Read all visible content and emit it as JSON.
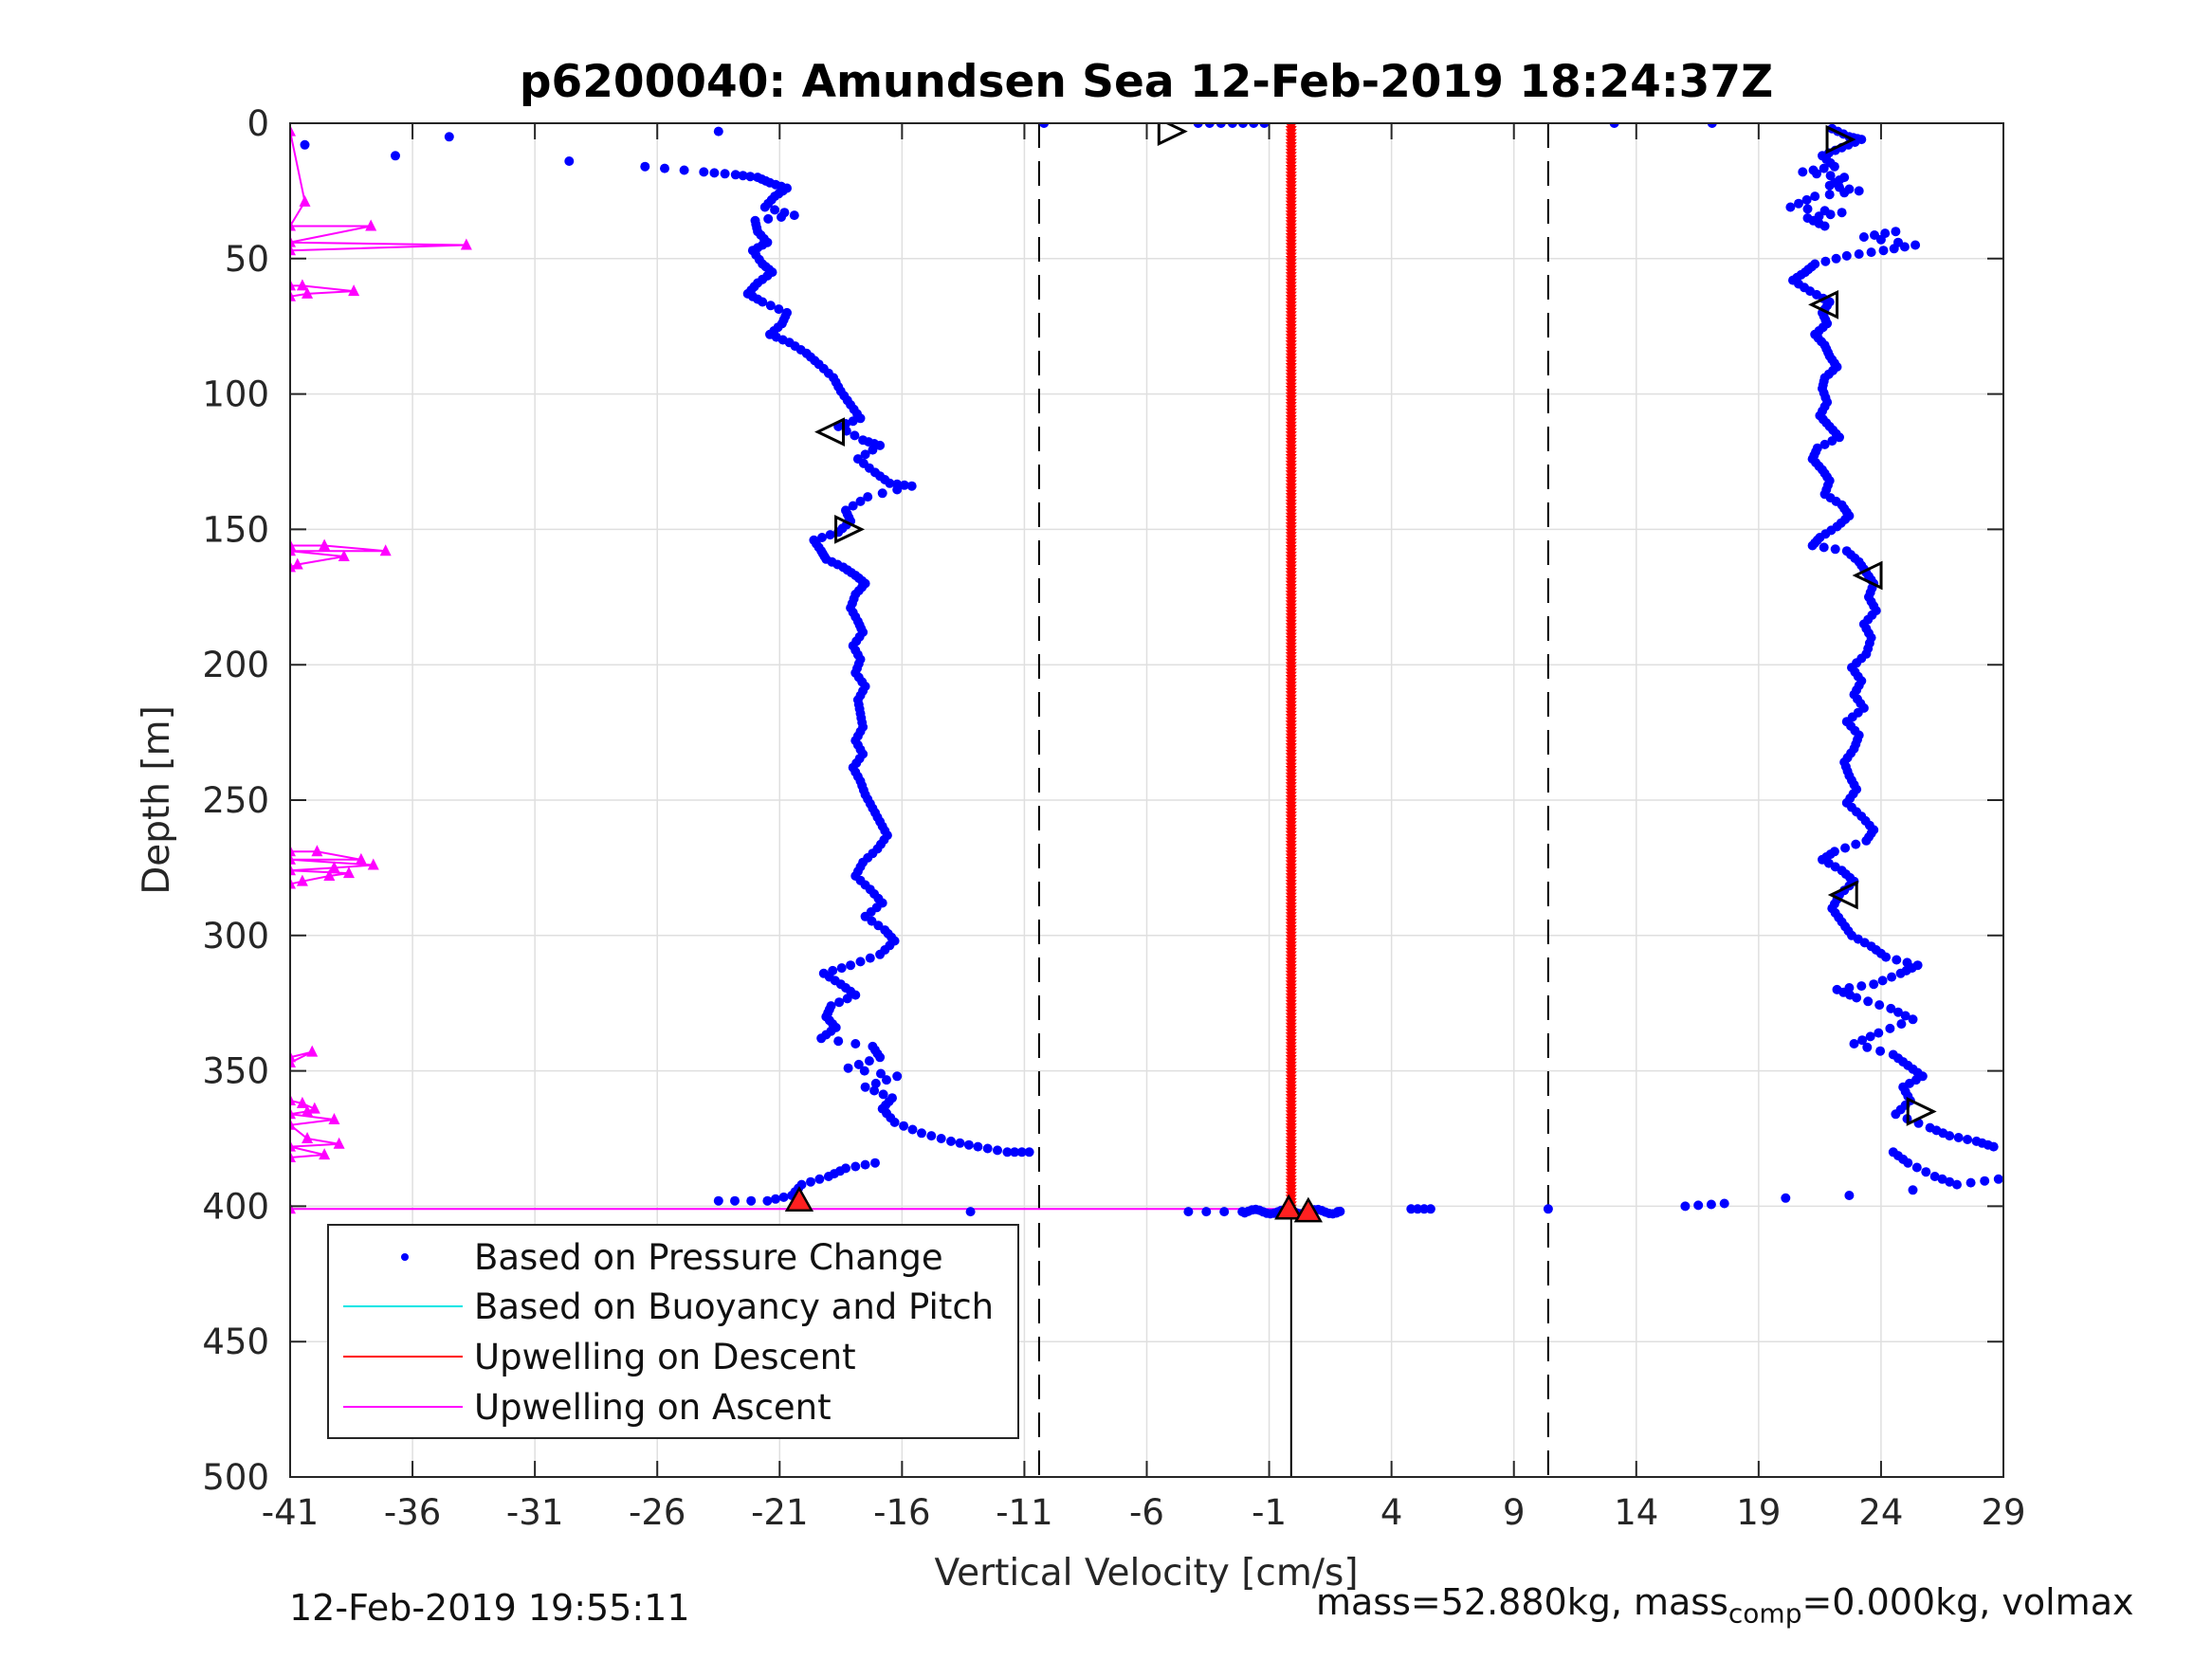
{
  "chart_data": {
    "type": "scatter",
    "title": "p6200040: Amundsen Sea 12-Feb-2019 18:24:37Z",
    "xlabel": "Vertical Velocity [cm/s]",
    "ylabel": "Depth [m]",
    "xlim": [
      -41,
      29
    ],
    "ylim": [
      0,
      500
    ],
    "y_reversed": true,
    "grid": true,
    "xticks": [
      "-41",
      "-36",
      "-31",
      "-26",
      "-21",
      "-16",
      "-11",
      "-6",
      "-1",
      "4",
      "9",
      "14",
      "19",
      "24",
      "29"
    ],
    "yticks": [
      "0",
      "50",
      "100",
      "150",
      "200",
      "250",
      "300",
      "350",
      "400",
      "450",
      "500"
    ],
    "legend_position": "bottom-left",
    "legend": [
      "Based on Pressure Change",
      "Based on Buoyancy and Pitch",
      "Upwelling on Descent",
      "Upwelling on Ascent"
    ],
    "colors": {
      "pressure": "#0000ff",
      "buoyancy": "#00e5e5",
      "descent": "#ff0000",
      "ascent": "#ff00ff",
      "axis": "#262626",
      "grid": "#dfdfdf"
    },
    "reference_lines_x": [
      -10.4,
      10.4
    ],
    "descent_profile": [
      [
        -23.5,
        3
      ],
      [
        -34.5,
        5
      ],
      [
        -40.4,
        8
      ],
      [
        -36.7,
        12
      ],
      [
        -29.6,
        14
      ],
      [
        -26.5,
        16
      ],
      [
        -24.1,
        18
      ],
      [
        -22.8,
        19
      ],
      [
        -21.9,
        20
      ],
      [
        -21.4,
        22
      ],
      [
        -20.7,
        24
      ],
      [
        -21.2,
        27
      ],
      [
        -21.6,
        31
      ],
      [
        -20.4,
        34
      ],
      [
        -22.0,
        36
      ],
      [
        -21.9,
        40
      ],
      [
        -21.5,
        44
      ],
      [
        -22.1,
        47
      ],
      [
        -21.7,
        52
      ],
      [
        -21.3,
        55
      ],
      [
        -21.9,
        59
      ],
      [
        -22.3,
        63
      ],
      [
        -21.7,
        66
      ],
      [
        -20.7,
        70
      ],
      [
        -20.9,
        74
      ],
      [
        -21.4,
        78
      ],
      [
        -20.6,
        81
      ],
      [
        -19.9,
        85
      ],
      [
        -19.4,
        89
      ],
      [
        -18.8,
        94
      ],
      [
        -18.5,
        99
      ],
      [
        -18.1,
        104
      ],
      [
        -17.7,
        109
      ],
      [
        -18.6,
        112
      ],
      [
        -17.6,
        117
      ],
      [
        -16.9,
        119
      ],
      [
        -17.8,
        124
      ],
      [
        -17.1,
        129
      ],
      [
        -16.5,
        133
      ],
      [
        -15.6,
        134
      ],
      [
        -17.4,
        138
      ],
      [
        -18.3,
        143
      ],
      [
        -18.1,
        147
      ],
      [
        -18.6,
        151
      ],
      [
        -19.6,
        154
      ],
      [
        -19.3,
        158
      ],
      [
        -19.1,
        161
      ],
      [
        -18.4,
        164
      ],
      [
        -17.9,
        167
      ],
      [
        -17.5,
        170
      ],
      [
        -17.9,
        174
      ],
      [
        -18.1,
        179
      ],
      [
        -17.8,
        184
      ],
      [
        -17.6,
        188
      ],
      [
        -18.0,
        193
      ],
      [
        -17.7,
        198
      ],
      [
        -17.9,
        203
      ],
      [
        -17.5,
        208
      ],
      [
        -17.8,
        213
      ],
      [
        -17.7,
        218
      ],
      [
        -17.6,
        223
      ],
      [
        -17.9,
        228
      ],
      [
        -17.6,
        233
      ],
      [
        -18.0,
        238
      ],
      [
        -17.7,
        243
      ],
      [
        -17.5,
        248
      ],
      [
        -17.2,
        253
      ],
      [
        -16.9,
        258
      ],
      [
        -16.6,
        263
      ],
      [
        -17.0,
        268
      ],
      [
        -17.6,
        273
      ],
      [
        -17.9,
        278
      ],
      [
        -17.3,
        283
      ],
      [
        -16.8,
        288
      ],
      [
        -17.5,
        293
      ],
      [
        -16.7,
        298
      ],
      [
        -16.3,
        302
      ],
      [
        -16.9,
        307
      ],
      [
        -18.1,
        311
      ],
      [
        -19.2,
        314
      ],
      [
        -18.5,
        318
      ],
      [
        -17.9,
        322
      ],
      [
        -18.9,
        326
      ],
      [
        -19.1,
        330
      ],
      [
        -18.7,
        334
      ],
      [
        -19.3,
        338
      ],
      [
        -17.2,
        341
      ],
      [
        -16.9,
        345
      ],
      [
        -18.2,
        349
      ],
      [
        -16.2,
        352
      ],
      [
        -17.5,
        356
      ],
      [
        -16.4,
        360
      ],
      [
        -16.8,
        364
      ],
      [
        -16.3,
        369
      ],
      [
        -15.2,
        373
      ],
      [
        -14.0,
        376
      ],
      [
        -12.9,
        378
      ],
      [
        -11.7,
        380
      ],
      [
        -10.8,
        380
      ],
      [
        -17.1,
        384
      ],
      [
        -18.3,
        386
      ],
      [
        -19.0,
        389
      ],
      [
        -20.1,
        392
      ],
      [
        -20.5,
        396
      ],
      [
        -21.5,
        398
      ],
      [
        -23.5,
        398
      ],
      [
        -13.2,
        402
      ]
    ],
    "ascent_profile": [
      [
        -10.2,
        0
      ],
      [
        -3.9,
        0
      ],
      [
        -2.5,
        0
      ],
      [
        -1.2,
        0
      ],
      [
        13.1,
        0
      ],
      [
        17.1,
        0
      ],
      [
        22.0,
        2
      ],
      [
        22.7,
        5
      ],
      [
        23.2,
        6
      ],
      [
        22.4,
        9
      ],
      [
        21.6,
        12
      ],
      [
        22.1,
        16
      ],
      [
        20.8,
        18
      ],
      [
        22.5,
        20
      ],
      [
        21.9,
        23
      ],
      [
        23.1,
        25
      ],
      [
        21.3,
        27
      ],
      [
        20.3,
        31
      ],
      [
        22.4,
        33
      ],
      [
        21.0,
        35
      ],
      [
        21.7,
        38
      ],
      [
        24.6,
        40
      ],
      [
        23.3,
        42
      ],
      [
        25.4,
        45
      ],
      [
        24.1,
        47
      ],
      [
        22.6,
        49
      ],
      [
        21.3,
        52
      ],
      [
        20.9,
        55
      ],
      [
        20.4,
        58
      ],
      [
        21.1,
        62
      ],
      [
        21.9,
        66
      ],
      [
        21.6,
        70
      ],
      [
        21.8,
        74
      ],
      [
        21.3,
        78
      ],
      [
        21.7,
        82
      ],
      [
        21.9,
        86
      ],
      [
        22.2,
        90
      ],
      [
        21.7,
        94
      ],
      [
        21.6,
        98
      ],
      [
        21.8,
        103
      ],
      [
        21.5,
        108
      ],
      [
        21.9,
        112
      ],
      [
        22.3,
        116
      ],
      [
        21.4,
        120
      ],
      [
        21.2,
        124
      ],
      [
        21.6,
        128
      ],
      [
        21.9,
        132
      ],
      [
        21.7,
        137
      ],
      [
        22.4,
        141
      ],
      [
        22.7,
        145
      ],
      [
        22.2,
        149
      ],
      [
        21.5,
        153
      ],
      [
        21.2,
        156
      ],
      [
        22.6,
        158
      ],
      [
        23.1,
        162
      ],
      [
        23.4,
        166
      ],
      [
        23.7,
        170
      ],
      [
        23.5,
        175
      ],
      [
        23.8,
        180
      ],
      [
        23.3,
        185
      ],
      [
        23.6,
        190
      ],
      [
        23.4,
        196
      ],
      [
        22.8,
        201
      ],
      [
        23.2,
        206
      ],
      [
        22.9,
        211
      ],
      [
        23.3,
        216
      ],
      [
        22.6,
        221
      ],
      [
        23.1,
        226
      ],
      [
        22.9,
        231
      ],
      [
        22.5,
        236
      ],
      [
        22.7,
        241
      ],
      [
        23.0,
        246
      ],
      [
        22.6,
        251
      ],
      [
        23.2,
        256
      ],
      [
        23.7,
        261
      ],
      [
        23.4,
        265
      ],
      [
        22.1,
        269
      ],
      [
        21.6,
        272
      ],
      [
        22.4,
        276
      ],
      [
        22.9,
        280
      ],
      [
        22.3,
        285
      ],
      [
        22.0,
        290
      ],
      [
        22.4,
        295
      ],
      [
        22.8,
        300
      ],
      [
        23.6,
        304
      ],
      [
        24.2,
        308
      ],
      [
        25.5,
        311
      ],
      [
        24.8,
        314
      ],
      [
        23.7,
        318
      ],
      [
        22.2,
        320
      ],
      [
        23.0,
        323
      ],
      [
        24.4,
        327
      ],
      [
        25.3,
        331
      ],
      [
        23.9,
        336
      ],
      [
        22.9,
        340
      ],
      [
        24.5,
        344
      ],
      [
        25.1,
        348
      ],
      [
        25.7,
        352
      ],
      [
        24.9,
        356
      ],
      [
        25.2,
        361
      ],
      [
        24.6,
        366
      ],
      [
        26.0,
        371
      ],
      [
        26.8,
        374
      ],
      [
        27.9,
        376
      ],
      [
        28.6,
        378
      ],
      [
        24.5,
        380
      ],
      [
        25.1,
        384
      ],
      [
        26.2,
        389
      ],
      [
        27.1,
        392
      ],
      [
        28.8,
        390
      ],
      [
        25.3,
        394
      ],
      [
        22.7,
        396
      ],
      [
        20.1,
        397
      ],
      [
        17.6,
        399
      ],
      [
        16.0,
        400
      ],
      [
        10.4,
        401
      ],
      [
        5.6,
        401
      ],
      [
        4.8,
        401
      ],
      [
        -4.3,
        402
      ],
      [
        -2.1,
        402
      ],
      [
        1.8,
        402
      ]
    ],
    "descent_upwelling": {
      "x": -0.1,
      "y_from": 0,
      "y_to": 402
    },
    "ascent_upwelling": [
      [
        -41,
        3
      ],
      [
        -40.4,
        29
      ],
      [
        -41,
        38
      ],
      [
        -37.7,
        38
      ],
      [
        -41,
        44
      ],
      [
        -33.8,
        45
      ],
      [
        -41,
        47
      ],
      [
        -41,
        60
      ],
      [
        -40.5,
        60
      ],
      [
        -38.4,
        62
      ],
      [
        -40.3,
        63
      ],
      [
        -41,
        64
      ],
      [
        -41,
        156
      ],
      [
        -39.6,
        156
      ],
      [
        -37.1,
        158
      ],
      [
        -41,
        158
      ],
      [
        -38.8,
        160
      ],
      [
        -40.7,
        163
      ],
      [
        -41,
        164
      ],
      [
        -41,
        269
      ],
      [
        -39.9,
        269
      ],
      [
        -38.1,
        272
      ],
      [
        -41,
        272
      ],
      [
        -37.6,
        274
      ],
      [
        -39.2,
        275
      ],
      [
        -41,
        276
      ],
      [
        -38.6,
        277
      ],
      [
        -39.4,
        278
      ],
      [
        -40.5,
        280
      ],
      [
        -41,
        281
      ],
      [
        -41,
        345
      ],
      [
        -40.1,
        343
      ],
      [
        -41,
        347
      ],
      [
        -41,
        361
      ],
      [
        -40.5,
        362
      ],
      [
        -40.0,
        364
      ],
      [
        -40.3,
        365
      ],
      [
        -41,
        366
      ],
      [
        -39.2,
        368
      ],
      [
        -41,
        370
      ],
      [
        -40.3,
        375
      ],
      [
        -39.0,
        377
      ],
      [
        -41,
        378
      ],
      [
        -39.6,
        381
      ],
      [
        -41,
        382
      ],
      [
        -41,
        401
      ],
      [
        -0.1,
        401
      ]
    ],
    "direction_markers": [
      [
        -5,
        3,
        "right"
      ],
      [
        22.3,
        6,
        "right"
      ],
      [
        21.7,
        67,
        "left"
      ],
      [
        -18.9,
        114,
        "left"
      ],
      [
        -18.2,
        150,
        "right"
      ],
      [
        23.5,
        167,
        "left"
      ],
      [
        22.5,
        285,
        "left"
      ],
      [
        25.6,
        365,
        "right"
      ]
    ],
    "filled_markers": [
      [
        -20.2,
        398
      ],
      [
        -0.2,
        401
      ],
      [
        0.6,
        402
      ]
    ]
  },
  "footer": {
    "timestamp": "12-Feb-2019 19:55:11",
    "mass_text_a": "mass=52.880kg, mass",
    "mass_sub": "comp",
    "mass_text_b": "=0.000kg, volmax"
  }
}
